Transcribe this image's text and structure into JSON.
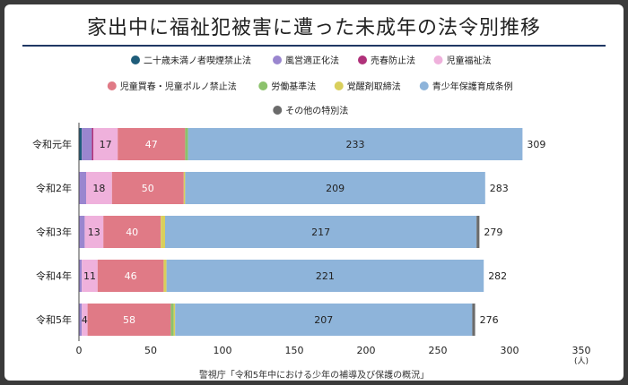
{
  "title": "家出中に福祉犯被害に遭った未成年の法令別推移",
  "source": "警視庁「令和5年中における少年の補導及び保護の概況」",
  "colors": {
    "二十歳未満ノ者喫煙禁止法": "#1f5d7a",
    "風営適正化法": "#9a86cf",
    "売春防止法": "#b0317a",
    "児童福祉法": "#efb1dc",
    "児童買春・児童ポルノ禁止法": "#e07a86",
    "労働基準法": "#8cc26c",
    "覚醒剤取締法": "#d9cf5c",
    "青少年保護育成条例": "#8eb4da",
    "その他の特別法": "#6b6b6b"
  },
  "chart_data": {
    "type": "bar",
    "orientation": "horizontal",
    "stacked": true,
    "title": "家出中に福祉犯被害に遭った未成年の法令別推移",
    "unit": "(人)",
    "xlim": [
      0,
      350
    ],
    "xticks": [
      0,
      50,
      100,
      150,
      200,
      250,
      300,
      350
    ],
    "legend_position": "top",
    "categories": [
      "令和元年",
      "令和2年",
      "令和3年",
      "令和4年",
      "令和5年"
    ],
    "series": [
      {
        "name": "二十歳未満ノ者喫煙禁止法",
        "values": [
          2,
          0,
          0,
          0,
          0
        ]
      },
      {
        "name": "風営適正化法",
        "values": [
          7,
          5,
          4,
          2,
          2
        ]
      },
      {
        "name": "売春防止法",
        "values": [
          1,
          0,
          0,
          0,
          0
        ]
      },
      {
        "name": "児童福祉法",
        "values": [
          17,
          18,
          13,
          11,
          4
        ]
      },
      {
        "name": "児童買春・児童ポルノ禁止法",
        "values": [
          47,
          50,
          40,
          46,
          58
        ]
      },
      {
        "name": "労働基準法",
        "values": [
          2,
          0,
          0,
          0,
          2
        ]
      },
      {
        "name": "覚醒剤取締法",
        "values": [
          0,
          1,
          3,
          2,
          1
        ]
      },
      {
        "name": "青少年保護育成条例",
        "values": [
          233,
          209,
          217,
          221,
          207
        ]
      },
      {
        "name": "その他の特別法",
        "values": [
          0,
          0,
          2,
          0,
          2
        ]
      }
    ],
    "totals": [
      309,
      283,
      279,
      282,
      276
    ],
    "show_label_series": [
      "児童福祉法",
      "児童買春・児童ポルノ禁止法",
      "青少年保護育成条例"
    ]
  }
}
